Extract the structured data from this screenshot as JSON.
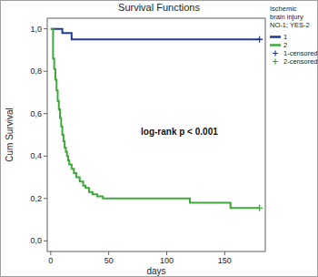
{
  "chart_data": {
    "type": "step",
    "title": "Survival Functions",
    "x_label": "days",
    "y_label": "Cum Survival",
    "annotation": "log-rank p < 0.001",
    "legend_title": "Ischemic brain injury NO-1; YES-2",
    "legend": "right",
    "xlim": [
      -3,
      185
    ],
    "ylim": [
      -0.05,
      1.05
    ],
    "xticks": [
      0,
      50,
      100,
      150
    ],
    "yticks": [
      {
        "value": 0,
        "label": "0,0"
      },
      {
        "value": 0.2,
        "label": "0,2"
      },
      {
        "value": 0.4,
        "label": "0,4"
      },
      {
        "value": 0.6,
        "label": "0,6"
      },
      {
        "value": 0.8,
        "label": "0,8"
      },
      {
        "value": 1,
        "label": "1,0"
      }
    ],
    "series": [
      {
        "name": "1",
        "type": "step",
        "color": "#1f3b93",
        "x": [
          0,
          10,
          18,
          180
        ],
        "values": [
          1,
          0.98,
          0.95,
          0.95
        ]
      },
      {
        "name": "2",
        "type": "step",
        "color": "#3ea83a",
        "x": [
          0,
          2,
          3,
          4,
          5,
          6,
          7,
          8,
          9,
          10,
          11,
          12,
          13,
          14,
          15,
          16,
          18,
          20,
          22,
          25,
          28,
          30,
          33,
          36,
          40,
          45,
          120,
          155,
          180
        ],
        "values": [
          1,
          0.86,
          0.81,
          0.76,
          0.71,
          0.66,
          0.62,
          0.58,
          0.54,
          0.5,
          0.47,
          0.44,
          0.42,
          0.4,
          0.38,
          0.36,
          0.34,
          0.32,
          0.3,
          0.28,
          0.26,
          0.25,
          0.23,
          0.22,
          0.21,
          0.2,
          0.18,
          0.155,
          0.155
        ]
      },
      {
        "name": "1-censored",
        "type": "scatter",
        "marker": "plus",
        "color": "#1f3b93",
        "x": [
          180
        ],
        "values": [
          0.95
        ]
      },
      {
        "name": "2-censored",
        "type": "scatter",
        "marker": "plus",
        "color": "#3ea83a",
        "x": [
          180
        ],
        "values": [
          0.155
        ]
      }
    ]
  }
}
